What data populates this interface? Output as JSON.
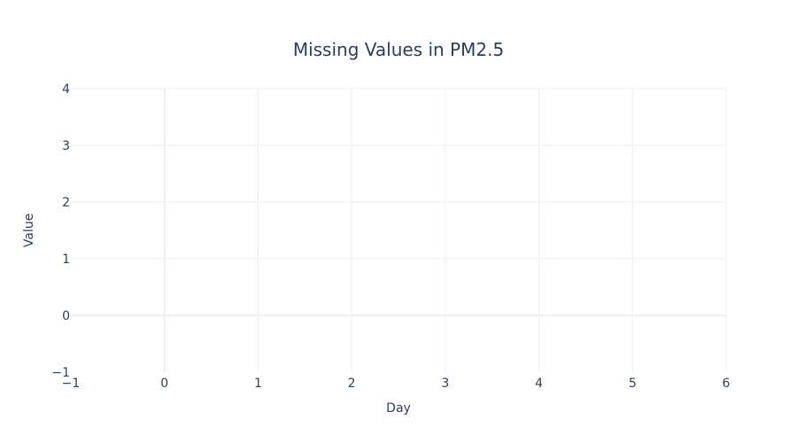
{
  "chart_data": {
    "type": "line",
    "title": "Missing Values in PM2.5",
    "xlabel": "Day",
    "ylabel": "Value",
    "xlim": [
      -1,
      6
    ],
    "ylim": [
      -1,
      4
    ],
    "x_ticks": [
      -1,
      0,
      1,
      2,
      3,
      4,
      5,
      6
    ],
    "y_ticks": [
      -1,
      0,
      1,
      2,
      3,
      4
    ],
    "x_tick_labels": [
      "−1",
      "0",
      "1",
      "2",
      "3",
      "4",
      "5",
      "6"
    ],
    "y_tick_labels": [
      "−1",
      "0",
      "1",
      "2",
      "3",
      "4"
    ],
    "grid": true,
    "series": []
  },
  "colors": {
    "background": "#ffffff",
    "grid": "#ebf0f8",
    "zeroline": "#ebf0f8",
    "text": "#2a3f5f"
  }
}
